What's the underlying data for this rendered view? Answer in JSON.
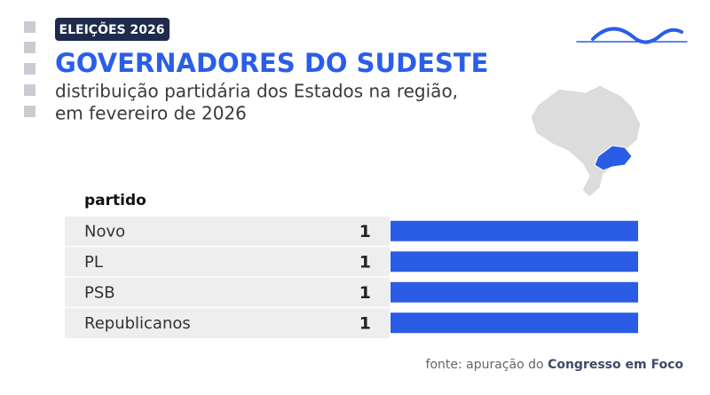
{
  "header": {
    "badge": "ELEIÇÕES 2026",
    "title": "GOVERNADORES DO SUDESTE",
    "subtitle": [
      "distribuição partidária dos Estados na região,",
      "em fevereiro de 2026"
    ]
  },
  "chart_data": {
    "type": "bar",
    "orientation": "horizontal",
    "category_header": "partido",
    "categories": [
      "Novo",
      "PL",
      "PSB",
      "Republicanos"
    ],
    "values": [
      1,
      1,
      1,
      1
    ],
    "color": "#2b5ce6",
    "xlim": [
      0,
      1
    ]
  },
  "source": {
    "prefix": "fonte: apuração do",
    "name": "Congresso em Foco"
  }
}
